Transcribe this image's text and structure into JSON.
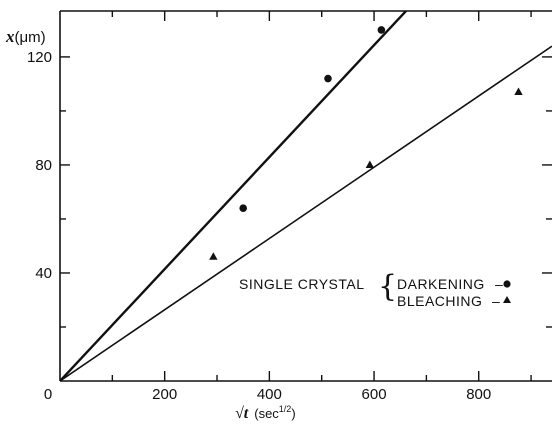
{
  "chart_data": {
    "type": "scatter",
    "xlabel": "√t",
    "xlabel_unit_prefix": "(sec",
    "xlabel_unit_exp": "1/2",
    "xlabel_unit_suffix": ")",
    "ylabel": "x",
    "ylabel_unit": "(μm)",
    "xlim": [
      0,
      940
    ],
    "ylim": [
      0,
      137
    ],
    "x_ticks": [
      0,
      200,
      400,
      600,
      800
    ],
    "y_ticks": [
      40,
      80,
      120
    ],
    "grid": false,
    "legend": {
      "group_label": "SINGLE CRYSTAL",
      "placement": "lower-right"
    },
    "series": [
      {
        "name": "DARKENING",
        "marker": "circle",
        "points": [
          {
            "x": 350,
            "y": 64
          },
          {
            "x": 512,
            "y": 112
          },
          {
            "x": 614,
            "y": 130
          }
        ],
        "fit_line": {
          "x": [
            0,
            690
          ],
          "y": [
            0,
            143
          ]
        }
      },
      {
        "name": "BLEACHING",
        "marker": "triangle",
        "points": [
          {
            "x": 293,
            "y": 46
          },
          {
            "x": 592,
            "y": 80
          },
          {
            "x": 876,
            "y": 107
          }
        ],
        "fit_line": {
          "x": [
            0,
            940
          ],
          "y": [
            0,
            124
          ]
        }
      }
    ]
  }
}
